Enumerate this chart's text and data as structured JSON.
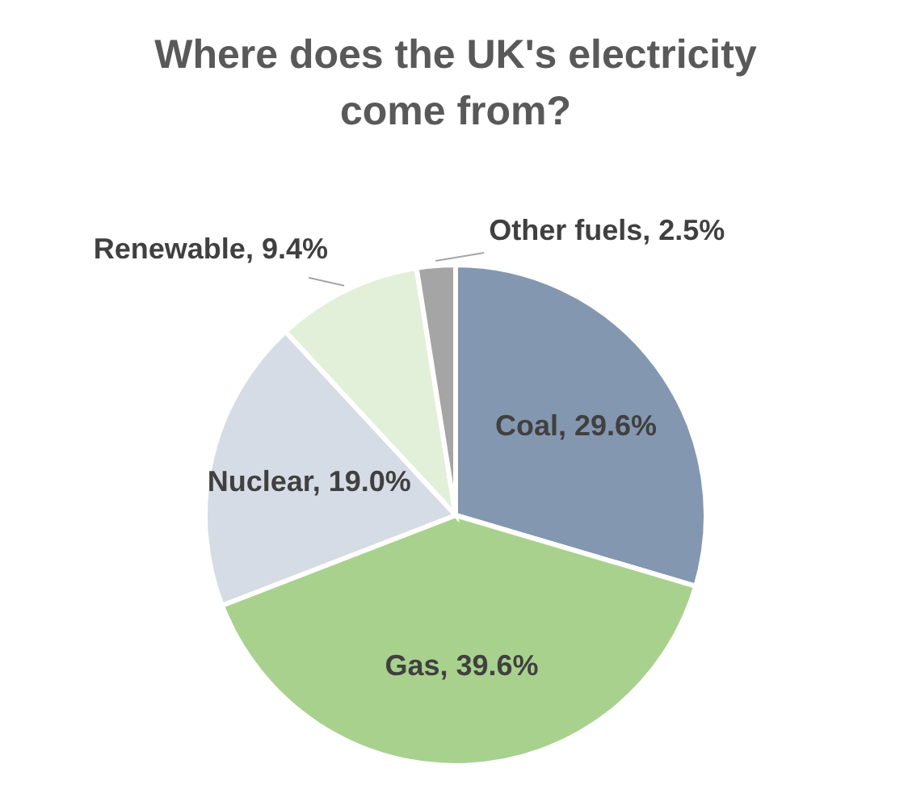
{
  "chart_data": {
    "type": "pie",
    "title": "Where does the UK's electricity come from?",
    "categories": [
      "Coal",
      "Gas",
      "Nuclear",
      "Renewable",
      "Other fuels"
    ],
    "values": [
      29.6,
      39.6,
      19.0,
      9.4,
      2.5
    ],
    "value_labels": [
      "29.6%",
      "39.6%",
      "19.0%",
      "9.4%",
      "2.5%"
    ],
    "colors": [
      "#8497b0",
      "#a9d18e",
      "#d6dce5",
      "#e2f0d9",
      "#a5a5a5"
    ]
  }
}
